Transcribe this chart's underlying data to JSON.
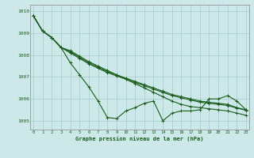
{
  "title": "Graphe pression niveau de la mer (hPa)",
  "background_color": "#cce8e8",
  "grid_color": "#aacfcf",
  "line_color": "#1a5c1a",
  "x_ticks": [
    0,
    1,
    2,
    3,
    4,
    5,
    6,
    7,
    8,
    9,
    10,
    11,
    12,
    13,
    14,
    15,
    16,
    17,
    18,
    19,
    20,
    21,
    22,
    23
  ],
  "ylim": [
    1004.6,
    1010.3
  ],
  "yticks": [
    1005,
    1006,
    1007,
    1008,
    1009,
    1010
  ],
  "series": [
    [
      1009.8,
      1009.1,
      1008.8,
      1008.35,
      1007.65,
      1007.1,
      1006.55,
      1005.9,
      1005.15,
      1005.1,
      1005.45,
      1005.6,
      1005.8,
      1005.9,
      1005.0,
      1005.35,
      1005.45,
      1005.45,
      1005.5,
      1006.0,
      1006.0,
      1006.15,
      1005.9,
      1005.5
    ],
    [
      1009.8,
      1009.1,
      1008.8,
      1008.35,
      1008.2,
      1007.95,
      1007.7,
      1007.5,
      1007.3,
      1007.1,
      1006.9,
      1006.7,
      1006.5,
      1006.3,
      1006.1,
      1005.9,
      1005.75,
      1005.65,
      1005.6,
      1005.55,
      1005.5,
      1005.45,
      1005.35,
      1005.25
    ],
    [
      1009.8,
      1009.1,
      1008.8,
      1008.35,
      1008.15,
      1007.9,
      1007.65,
      1007.45,
      1007.25,
      1007.1,
      1006.95,
      1006.8,
      1006.65,
      1006.5,
      1006.35,
      1006.2,
      1006.1,
      1006.0,
      1005.9,
      1005.85,
      1005.8,
      1005.75,
      1005.6,
      1005.5
    ],
    [
      1009.8,
      1009.1,
      1008.8,
      1008.35,
      1008.1,
      1007.85,
      1007.6,
      1007.4,
      1007.2,
      1007.05,
      1006.9,
      1006.75,
      1006.6,
      1006.45,
      1006.3,
      1006.15,
      1006.05,
      1005.95,
      1005.85,
      1005.8,
      1005.75,
      1005.7,
      1005.58,
      1005.48
    ]
  ]
}
